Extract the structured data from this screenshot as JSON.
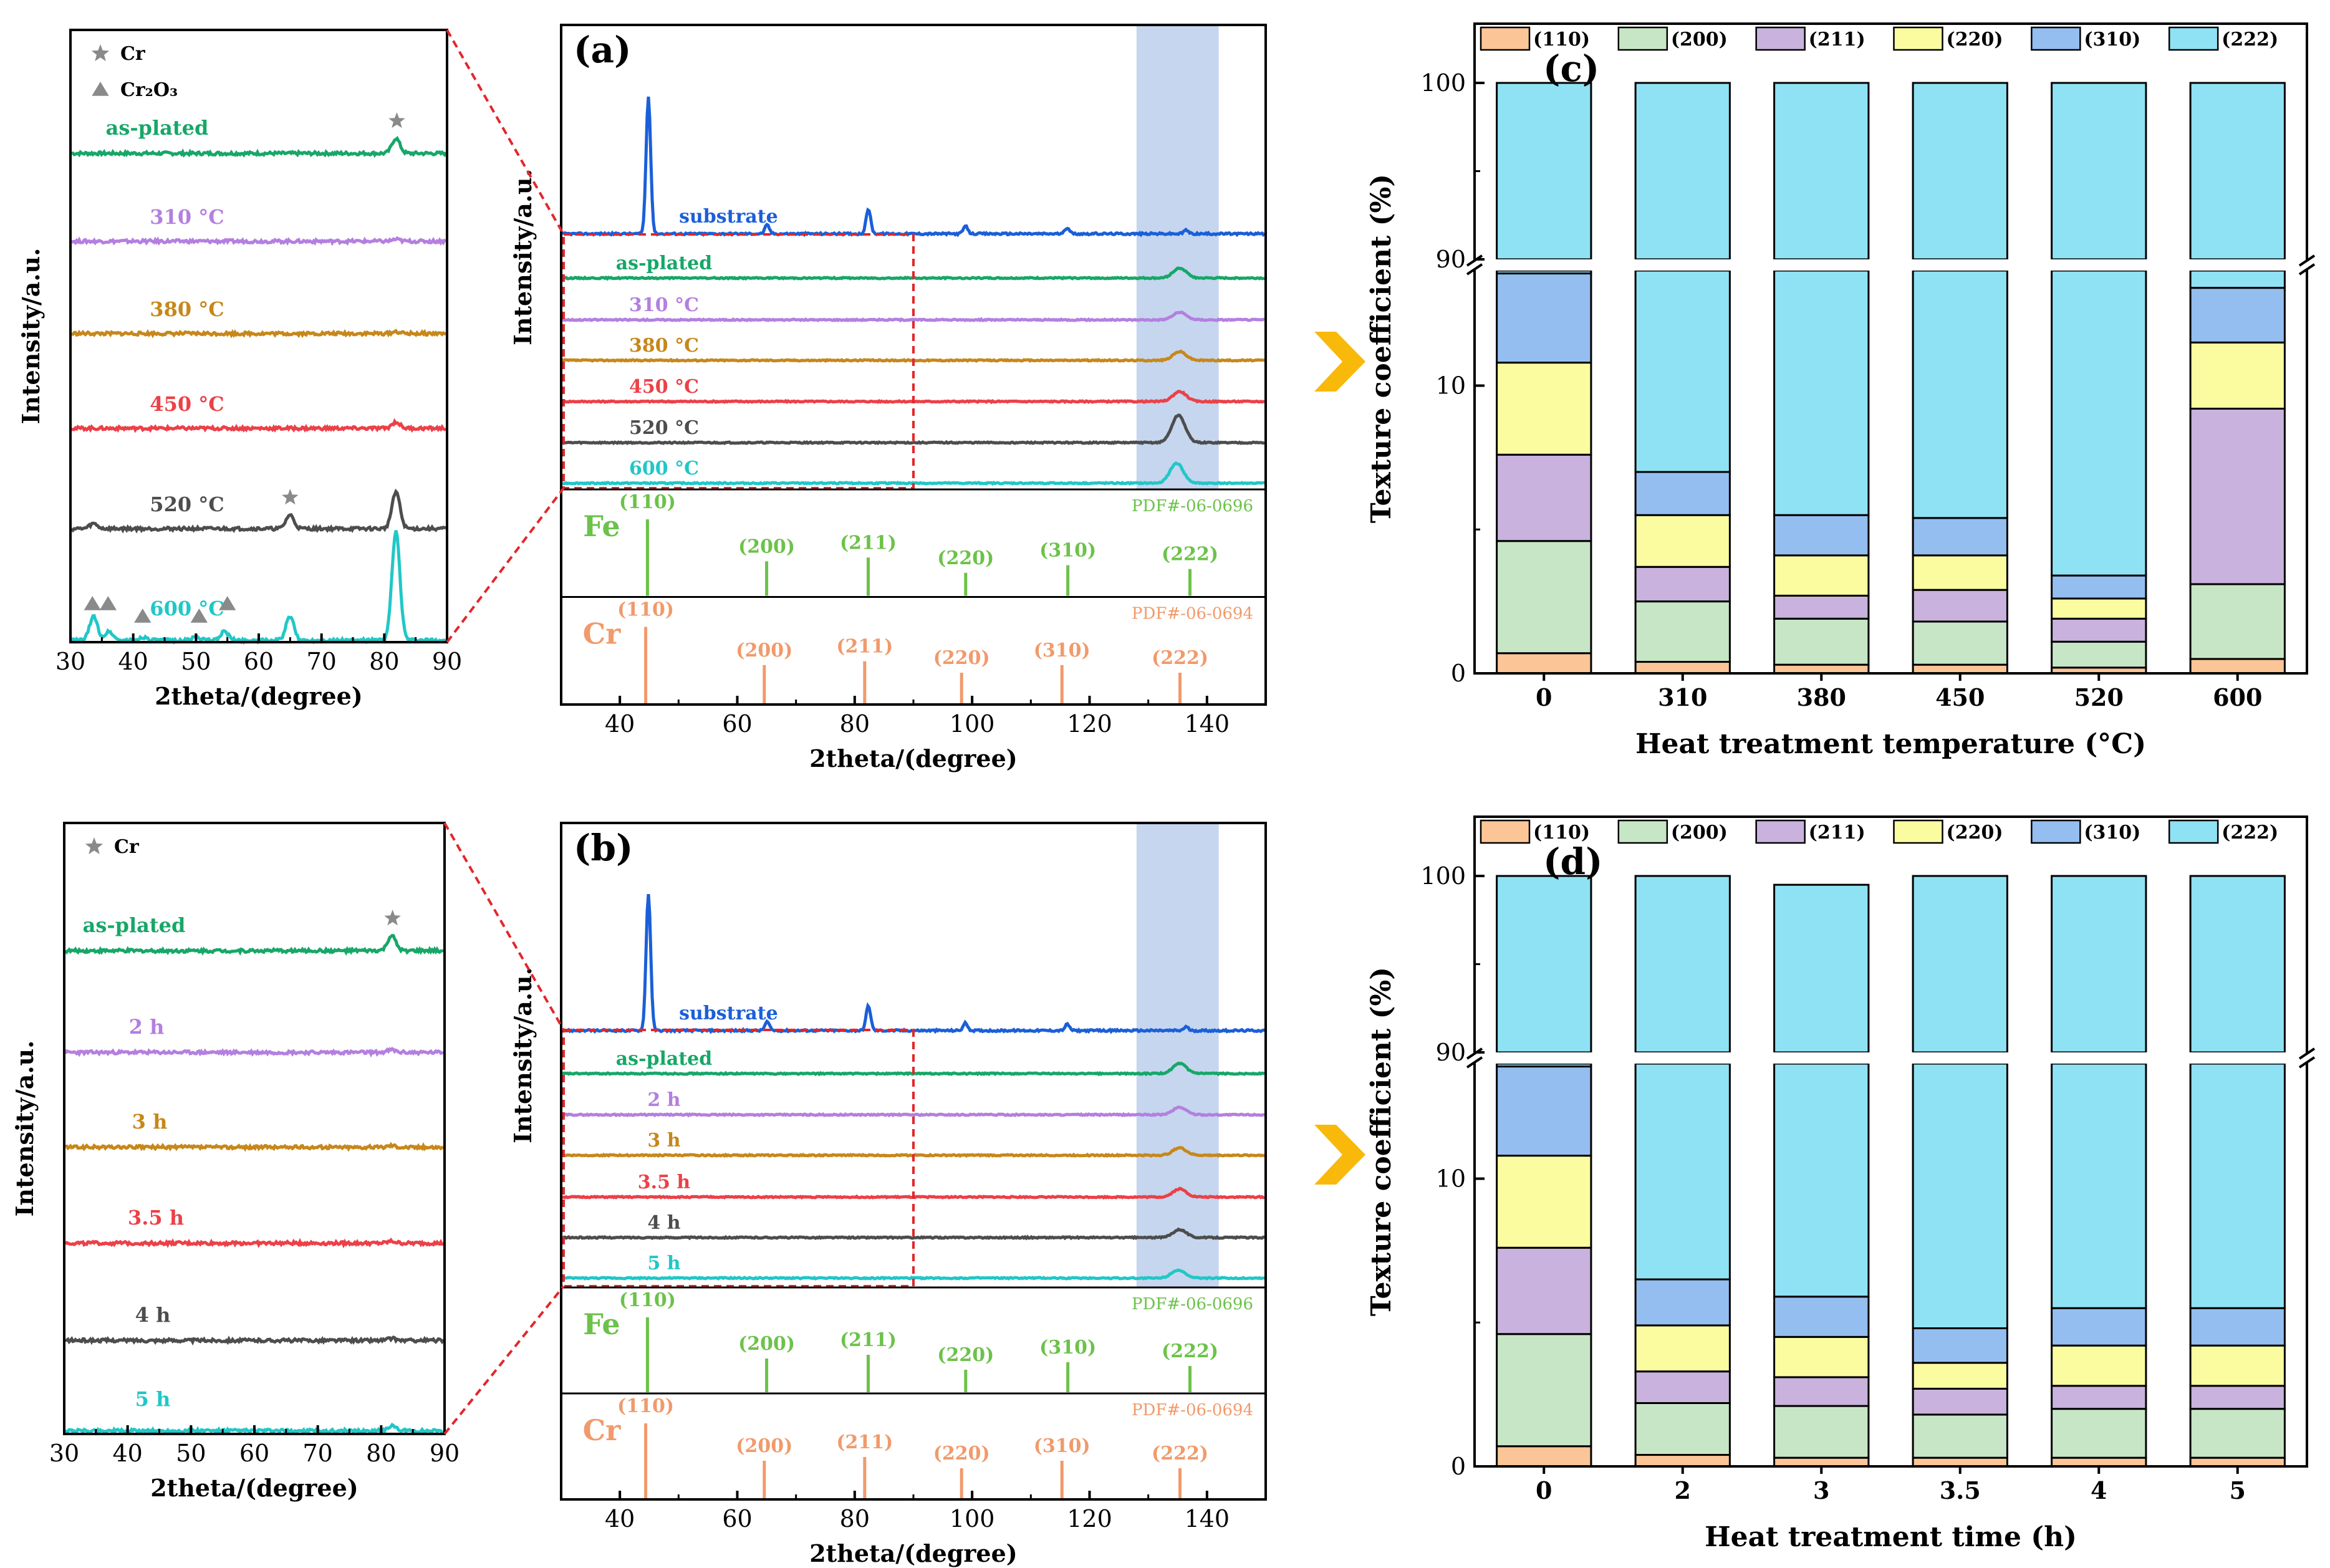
{
  "chart_data": [
    {
      "panel": "zoom-top",
      "type": "line",
      "xlabel": "2theta/(degree)",
      "ylabel": "Intensity/a.u.",
      "xlim": [
        30,
        90
      ],
      "xticks": [
        "30",
        "40",
        "50",
        "60",
        "70",
        "80",
        "90"
      ],
      "legend": [
        {
          "label": "Cr",
          "marker": "star"
        },
        {
          "label": "Cr₂O₃",
          "marker": "triangle"
        }
      ],
      "series": [
        {
          "name": "as-plated",
          "color": "#17a768",
          "peaks": [
            [
              82,
              24
            ]
          ],
          "star_at": [
            82
          ]
        },
        {
          "name": "310 °C",
          "color": "#b47fe0",
          "peaks": [
            [
              82,
              3
            ]
          ]
        },
        {
          "name": "380 °C",
          "color": "#c7871a",
          "peaks": [
            [
              82,
              3
            ]
          ]
        },
        {
          "name": "450 °C",
          "color": "#ec4048",
          "peaks": [
            [
              82,
              10
            ]
          ]
        },
        {
          "name": "520 °C",
          "color": "#4d4d4d",
          "peaks": [
            [
              33.5,
              8
            ],
            [
              65,
              22
            ],
            [
              82,
              60
            ]
          ],
          "star_at": [
            65
          ]
        },
        {
          "name": "600 °C",
          "color": "#21c7c7",
          "peaks": [
            [
              33.5,
              38
            ],
            [
              36,
              14
            ],
            [
              41.5,
              5
            ],
            [
              50,
              6
            ],
            [
              54.5,
              14
            ],
            [
              65,
              38
            ],
            [
              82,
              175
            ]
          ],
          "tri_at": [
            33.5,
            36,
            41.5,
            50.5,
            55
          ]
        }
      ]
    },
    {
      "panel": "a",
      "type": "line",
      "label": "(a)",
      "xlabel": "2theta/(degree)",
      "ylabel": "Intensity/a.u.",
      "xlim": [
        30,
        150
      ],
      "xticks": [
        "40",
        "60",
        "80",
        "100",
        "120",
        "140"
      ],
      "series": [
        {
          "name": "substrate",
          "color": "#1a5fd8",
          "peaks": [
            [
              44.7,
              220
            ],
            [
              65,
              14
            ],
            [
              82.3,
              40
            ],
            [
              98.9,
              12
            ],
            [
              116.3,
              10
            ],
            [
              136.6,
              6
            ]
          ]
        },
        {
          "name": "as-plated",
          "color": "#17a768",
          "peaks": [
            [
              135.5,
              16
            ]
          ]
        },
        {
          "name": "310 °C",
          "color": "#b47fe0",
          "peaks": [
            [
              135.5,
              12
            ]
          ]
        },
        {
          "name": "380 °C",
          "color": "#c7871a",
          "peaks": [
            [
              135.5,
              14
            ]
          ]
        },
        {
          "name": "450 °C",
          "color": "#ec4048",
          "peaks": [
            [
              135.5,
              16
            ]
          ]
        },
        {
          "name": "520 °C",
          "color": "#4d4d4d",
          "peaks": [
            [
              135.3,
              44
            ]
          ]
        },
        {
          "name": "600 °C",
          "color": "#21c7c7",
          "peaks": [
            [
              135,
              32
            ]
          ]
        }
      ],
      "highlight": [
        128,
        142
      ],
      "references": [
        {
          "element": "Fe",
          "pdf": "PDF#-06-0696",
          "color": "#6cc24a",
          "lines": [
            {
              "hkl": "(110)",
              "x": 44.7,
              "h": 1
            },
            {
              "hkl": "(200)",
              "x": 65,
              "h": 0.45
            },
            {
              "hkl": "(211)",
              "x": 82.3,
              "h": 0.5
            },
            {
              "hkl": "(220)",
              "x": 98.9,
              "h": 0.3
            },
            {
              "hkl": "(310)",
              "x": 116.3,
              "h": 0.4
            },
            {
              "hkl": "(222)",
              "x": 137.1,
              "h": 0.35
            }
          ]
        },
        {
          "element": "Cr",
          "pdf": "PDF#-06-0694",
          "color": "#f19a6b",
          "lines": [
            {
              "hkl": "(110)",
              "x": 44.4,
              "h": 1
            },
            {
              "hkl": "(200)",
              "x": 64.6,
              "h": 0.5
            },
            {
              "hkl": "(211)",
              "x": 81.7,
              "h": 0.55
            },
            {
              "hkl": "(220)",
              "x": 98.2,
              "h": 0.4
            },
            {
              "hkl": "(310)",
              "x": 115.3,
              "h": 0.5
            },
            {
              "hkl": "(222)",
              "x": 135.4,
              "h": 0.4
            }
          ]
        }
      ]
    },
    {
      "panel": "c",
      "type": "bar",
      "label": "(c)",
      "stacked": true,
      "xlabel": "Heat treatment temperature (°C)",
      "ylabel": "Texture coefficient (%)",
      "categories": [
        "0",
        "310",
        "380",
        "450",
        "520",
        "600"
      ],
      "yticks": [
        "0",
        "10",
        "90",
        "100"
      ],
      "y_break": [
        14,
        90
      ],
      "series": [
        {
          "name": "(110)",
          "color": "#fbc597",
          "values": [
            0.7,
            0.4,
            0.3,
            0.3,
            0.2,
            0.5
          ]
        },
        {
          "name": "(200)",
          "color": "#c7e6c5",
          "values": [
            3.9,
            2.1,
            1.6,
            1.5,
            0.9,
            2.6
          ]
        },
        {
          "name": "(211)",
          "color": "#c9b2dd",
          "values": [
            3.0,
            1.2,
            0.8,
            1.1,
            0.8,
            6.1
          ]
        },
        {
          "name": "(220)",
          "color": "#fbfca0",
          "values": [
            3.2,
            1.8,
            1.4,
            1.2,
            0.7,
            2.3
          ]
        },
        {
          "name": "(310)",
          "color": "#94bef0",
          "values": [
            3.1,
            1.5,
            1.4,
            1.3,
            0.8,
            1.9
          ]
        },
        {
          "name": "(222)",
          "color": "#8fe2f4",
          "values": [
            86.1,
            93.0,
            94.5,
            94.6,
            96.6,
            86.6
          ]
        }
      ]
    },
    {
      "panel": "zoom-bottom",
      "type": "line",
      "xlabel": "2theta/(degree)",
      "ylabel": "Intensity/a.u.",
      "xlim": [
        30,
        90
      ],
      "xticks": [
        "30",
        "40",
        "50",
        "60",
        "70",
        "80",
        "90"
      ],
      "legend": [
        {
          "label": "Cr",
          "marker": "star"
        }
      ],
      "series": [
        {
          "name": "as-plated",
          "color": "#17a768",
          "peaks": [
            [
              81.8,
              24
            ]
          ],
          "star_at": [
            81.8
          ]
        },
        {
          "name": "2 h",
          "color": "#b47fe0",
          "peaks": [
            [
              81.8,
              4
            ]
          ]
        },
        {
          "name": "3 h",
          "color": "#c7871a",
          "peaks": [
            [
              81.8,
              3
            ]
          ]
        },
        {
          "name": "3.5 h",
          "color": "#ec4048",
          "peaks": [
            [
              81.8,
              3
            ]
          ]
        },
        {
          "name": "4 h",
          "color": "#4d4d4d",
          "peaks": [
            [
              81.8,
              3
            ]
          ]
        },
        {
          "name": "5 h",
          "color": "#21c7c7",
          "peaks": [
            [
              81.8,
              8
            ]
          ]
        }
      ]
    },
    {
      "panel": "b",
      "type": "line",
      "label": "(b)",
      "xlabel": "2theta/(degree)",
      "ylabel": "Intensity/a.u.",
      "xlim": [
        30,
        150
      ],
      "xticks": [
        "40",
        "60",
        "80",
        "100",
        "120",
        "140"
      ],
      "series": [
        {
          "name": "substrate",
          "color": "#1a5fd8",
          "peaks": [
            [
              44.7,
              220
            ],
            [
              65,
              14
            ],
            [
              82.3,
              40
            ],
            [
              98.9,
              12
            ],
            [
              116.3,
              10
            ],
            [
              136.6,
              6
            ]
          ]
        },
        {
          "name": "as-plated",
          "color": "#17a768",
          "peaks": [
            [
              135.5,
              16
            ]
          ]
        },
        {
          "name": "2 h",
          "color": "#b47fe0",
          "peaks": [
            [
              135.5,
              12
            ]
          ]
        },
        {
          "name": "3 h",
          "color": "#c7871a",
          "peaks": [
            [
              135.5,
              12
            ]
          ]
        },
        {
          "name": "3.5 h",
          "color": "#ec4048",
          "peaks": [
            [
              135.5,
              13
            ]
          ]
        },
        {
          "name": "4 h",
          "color": "#4d4d4d",
          "peaks": [
            [
              135.5,
              13
            ]
          ]
        },
        {
          "name": "5 h",
          "color": "#21c7c7",
          "peaks": [
            [
              135.2,
              13
            ]
          ]
        }
      ],
      "highlight": [
        128,
        142
      ],
      "references": [
        {
          "element": "Fe",
          "pdf": "PDF#-06-0696",
          "color": "#6cc24a",
          "lines": [
            {
              "hkl": "(110)",
              "x": 44.7,
              "h": 1
            },
            {
              "hkl": "(200)",
              "x": 65,
              "h": 0.45
            },
            {
              "hkl": "(211)",
              "x": 82.3,
              "h": 0.5
            },
            {
              "hkl": "(220)",
              "x": 98.9,
              "h": 0.3
            },
            {
              "hkl": "(310)",
              "x": 116.3,
              "h": 0.4
            },
            {
              "hkl": "(222)",
              "x": 137.1,
              "h": 0.35
            }
          ]
        },
        {
          "element": "Cr",
          "pdf": "PDF#-06-0694",
          "color": "#f19a6b",
          "lines": [
            {
              "hkl": "(110)",
              "x": 44.4,
              "h": 1
            },
            {
              "hkl": "(200)",
              "x": 64.6,
              "h": 0.5
            },
            {
              "hkl": "(211)",
              "x": 81.7,
              "h": 0.55
            },
            {
              "hkl": "(220)",
              "x": 98.2,
              "h": 0.4
            },
            {
              "hkl": "(310)",
              "x": 115.3,
              "h": 0.5
            },
            {
              "hkl": "(222)",
              "x": 135.4,
              "h": 0.4
            }
          ]
        }
      ]
    },
    {
      "panel": "d",
      "type": "bar",
      "label": "(d)",
      "stacked": true,
      "xlabel": "Heat treatment time (h)",
      "ylabel": "Texture coefficient (%)",
      "categories": [
        "0",
        "2",
        "3",
        "3.5",
        "4",
        "5"
      ],
      "yticks": [
        "0",
        "10",
        "90",
        "100"
      ],
      "y_break": [
        14,
        90
      ],
      "series": [
        {
          "name": "(110)",
          "color": "#fbc597",
          "values": [
            0.7,
            0.4,
            0.3,
            0.3,
            0.3,
            0.3
          ]
        },
        {
          "name": "(200)",
          "color": "#c7e6c5",
          "values": [
            3.9,
            1.8,
            1.8,
            1.5,
            1.7,
            1.7
          ]
        },
        {
          "name": "(211)",
          "color": "#c9b2dd",
          "values": [
            3.0,
            1.1,
            1.0,
            0.9,
            0.8,
            0.8
          ]
        },
        {
          "name": "(220)",
          "color": "#fbfca0",
          "values": [
            3.2,
            1.6,
            1.4,
            0.9,
            1.4,
            1.4
          ]
        },
        {
          "name": "(310)",
          "color": "#94bef0",
          "values": [
            3.1,
            1.6,
            1.4,
            1.2,
            1.3,
            1.3
          ]
        },
        {
          "name": "(222)",
          "color": "#8fe2f4",
          "values": [
            86.1,
            93.5,
            93.6,
            95.2,
            94.5,
            94.5
          ]
        }
      ]
    }
  ]
}
